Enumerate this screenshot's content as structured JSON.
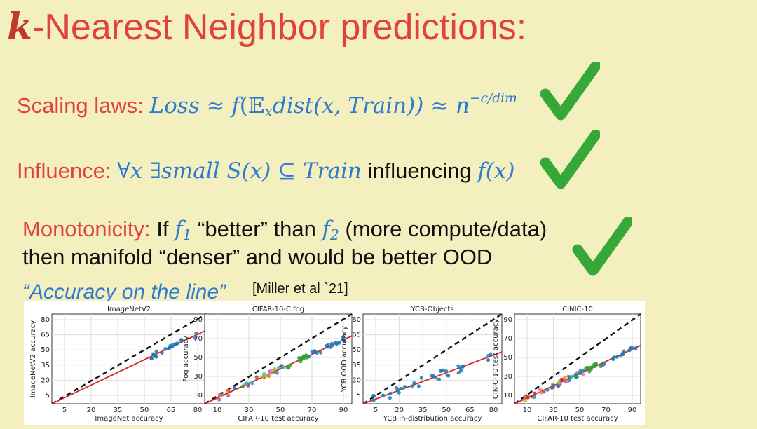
{
  "title": {
    "k": "k",
    "rest": "-Nearest Neighbor predictions:"
  },
  "scaling": {
    "label": "Scaling laws:",
    "formula_loss": "Loss ≈ f",
    "formula_mid": "(𝔼",
    "formula_sub": "x",
    "formula_dist": "dist(x, Train)) ≈ n",
    "formula_exp": "−c/dim"
  },
  "influence": {
    "label": "Influence:",
    "quant": "∀x ∃small S(x) ⊆ Train",
    "word": " influencing ",
    "fx": "f(x)"
  },
  "monotonicity": {
    "label": "Monotonicity:",
    "t1": " If ",
    "f1": "f",
    "f1_sub": "1",
    "t2": " “better” than ",
    "f2": "f",
    "f2_sub": "2",
    "t3": " (more compute/data)",
    "line2": "then manifold “denser” and would be better OOD"
  },
  "accuracy_line": "“Accuracy on the line”",
  "citation": "[Miller et al `21]",
  "colors": {
    "red": "#e0433a",
    "blue": "#2f7ad1",
    "check": "#35a838",
    "background": "#f3efbf"
  },
  "chart_data": [
    {
      "type": "scatter",
      "title": "ImageNetV2",
      "xlabel": "ImageNet accuracy",
      "ylabel": "ImageNetV2 accuracy",
      "xticks": [
        "5",
        "20",
        "35",
        "50",
        "65",
        "80"
      ],
      "yticks": [
        "80",
        "65",
        "50",
        "35",
        "20",
        "5"
      ]
    },
    {
      "type": "scatter",
      "title": "CIFAR-10-C fog",
      "xlabel": "CIFAR-10 test accuracy",
      "ylabel": "Fog accuracy",
      "xticks": [
        "10",
        "30",
        "50",
        "70",
        "90"
      ],
      "yticks": [
        "90",
        "70",
        "50",
        "30",
        "10"
      ]
    },
    {
      "type": "scatter",
      "title": "YCB-Objects",
      "xlabel": "YCB in-distribution accuracy",
      "ylabel": "YCB OOD accuracy",
      "xticks": [
        "5",
        "20",
        "35",
        "50",
        "65",
        "80"
      ],
      "yticks": [
        "80",
        "65",
        "50",
        "35",
        "20",
        "5"
      ]
    },
    {
      "type": "scatter",
      "title": "CINIC-10",
      "xlabel": "CIFAR-10 test accuracy",
      "ylabel": "CINIC-10 test accuracy",
      "xticks": [
        "10",
        "30",
        "50",
        "70",
        "90"
      ],
      "yticks": [
        "90",
        "70",
        "50",
        "30",
        "10"
      ]
    }
  ]
}
